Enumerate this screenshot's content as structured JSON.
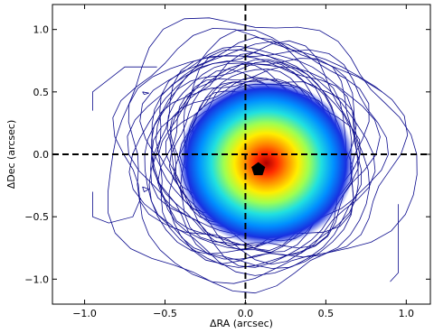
{
  "chart_data": {
    "type": "contour",
    "title": "",
    "xlabel": "ΔRA (arcsec)",
    "ylabel": "ΔDec (arcsec)",
    "xlim": [
      -1.2,
      1.15
    ],
    "ylim": [
      -1.2,
      1.2
    ],
    "x_ticks": [
      -1.0,
      -0.5,
      0.0,
      0.5,
      1.0
    ],
    "x_tick_labels": [
      "−1.0",
      "−0.5",
      "0.0",
      "0.5",
      "1.0"
    ],
    "y_ticks": [
      -1.0,
      -0.5,
      0.0,
      0.5,
      1.0
    ],
    "y_tick_labels": [
      "−1.0",
      "−0.5",
      "0.0",
      "0.5",
      "1.0"
    ],
    "grid": false,
    "reference_lines": {
      "x": 0.0,
      "y": 0.0,
      "style": "dashed",
      "color": "#000000"
    },
    "emission_peak": {
      "x": 0.13,
      "y": -0.07
    },
    "marker": {
      "shape": "pentagon",
      "x": 0.08,
      "y": -0.12,
      "color": "#000000"
    },
    "colors": {
      "contour_line": "#0a0a8c",
      "frame": "#000000"
    }
  }
}
